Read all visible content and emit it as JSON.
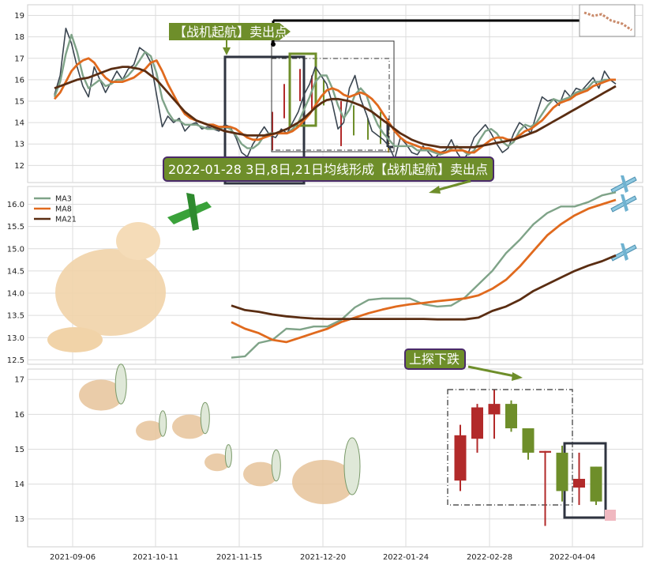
{
  "chart_data": {
    "type": "line",
    "x_ticks": [
      "2021-09-06",
      "2021-10-11",
      "2021-11-15",
      "2021-12-20",
      "2022-01-24",
      "2022-02-28",
      "2022-04-04"
    ],
    "panels": [
      {
        "id": "top",
        "ylim": [
          11.2,
          19.5
        ],
        "yticks": [
          "12",
          "13",
          "14",
          "15",
          "16",
          "17",
          "18",
          "19"
        ],
        "series": [
          {
            "name": "price",
            "color": "#3a4550",
            "values": [
              15.3,
              16.2,
              18.4,
              17.7,
              16.6,
              15.7,
              15.2,
              16.6,
              16.0,
              15.4,
              15.9,
              16.4,
              16.0,
              16.5,
              16.7,
              17.5,
              17.3,
              16.8,
              15.3,
              13.8,
              14.3,
              14.0,
              14.2,
              13.6,
              13.9,
              14.0,
              13.7,
              13.8,
              13.7,
              13.6,
              13.9,
              13.8,
              13.3,
              12.6,
              12.4,
              13.0,
              13.4,
              13.8,
              13.4,
              13.3,
              13.7,
              13.5,
              14.0,
              14.5,
              15.3,
              15.8,
              16.6,
              16.2,
              15.8,
              14.9,
              13.7,
              14.0,
              15.6,
              16.2,
              15.1,
              14.4,
              13.6,
              13.4,
              13.2,
              12.9,
              12.3,
              13.3,
              13.0,
              12.6,
              12.5,
              12.9,
              12.6,
              12.3,
              12.6,
              12.7,
              13.2,
              12.6,
              12.2,
              12.6,
              13.3,
              13.6,
              13.9,
              13.5,
              13.0,
              12.6,
              12.8,
              13.5,
              14.0,
              13.8,
              13.5,
              14.4,
              15.2,
              15.0,
              15.1,
              14.8,
              15.5,
              15.2,
              15.6,
              15.5,
              15.8,
              16.1,
              15.6,
              16.4,
              16.0,
              15.8
            ]
          },
          {
            "name": "MA3",
            "color": "#7fa388",
            "values": [
              15.2,
              15.9,
              17.2,
              18.1,
              17.3,
              16.2,
              15.6,
              15.8,
              16.0,
              15.7,
              15.8,
              16.0,
              16.0,
              16.2,
              16.5,
              16.9,
              17.3,
              17.1,
              16.3,
              15.1,
              14.5,
              14.1,
              14.1,
              13.9,
              13.9,
              13.9,
              13.8,
              13.7,
              13.7,
              13.7,
              13.8,
              13.7,
              13.4,
              13.0,
              12.8,
              12.8,
              13.0,
              13.4,
              13.5,
              13.5,
              13.5,
              13.5,
              13.7,
              14.0,
              14.6,
              15.2,
              15.9,
              16.2,
              16.2,
              15.6,
              14.8,
              14.2,
              14.6,
              15.3,
              15.6,
              15.3,
              14.5,
              13.9,
              13.5,
              13.2,
              12.9,
              12.9,
              12.9,
              12.9,
              12.7,
              12.7,
              12.7,
              12.6,
              12.5,
              12.6,
              12.8,
              12.9,
              12.7,
              12.5,
              12.7,
              13.2,
              13.6,
              13.7,
              13.5,
              13.1,
              12.9,
              13.1,
              13.6,
              13.9,
              13.8,
              14.0,
              14.4,
              14.8,
              15.1,
              15.0,
              15.1,
              15.2,
              15.4,
              15.5,
              15.6,
              15.9,
              15.9,
              16.0,
              16.0,
              16.0
            ]
          },
          {
            "name": "MA8",
            "color": "#e06a1e",
            "values": [
              15.1,
              15.4,
              15.9,
              16.4,
              16.7,
              16.9,
              17.0,
              16.8,
              16.4,
              16.1,
              15.9,
              15.9,
              15.9,
              16.0,
              16.1,
              16.3,
              16.5,
              16.8,
              16.9,
              16.4,
              15.8,
              15.3,
              14.8,
              14.4,
              14.2,
              14.1,
              14.0,
              13.9,
              13.9,
              13.8,
              13.8,
              13.8,
              13.7,
              13.5,
              13.3,
              13.2,
              13.2,
              13.3,
              13.4,
              13.5,
              13.5,
              13.5,
              13.6,
              13.8,
              14.1,
              14.4,
              14.8,
              15.2,
              15.5,
              15.6,
              15.5,
              15.3,
              15.2,
              15.3,
              15.4,
              15.3,
              15.1,
              14.8,
              14.4,
              14.0,
              13.6,
              13.3,
              13.1,
              13.0,
              12.9,
              12.8,
              12.8,
              12.7,
              12.6,
              12.6,
              12.7,
              12.7,
              12.7,
              12.6,
              12.6,
              12.8,
              13.0,
              13.2,
              13.3,
              13.3,
              13.2,
              13.2,
              13.4,
              13.6,
              13.7,
              13.9,
              14.1,
              14.4,
              14.7,
              14.9,
              15.0,
              15.1,
              15.3,
              15.4,
              15.5,
              15.7,
              15.8,
              15.9,
              16.0,
              16.0
            ]
          },
          {
            "name": "MA21",
            "color": "#5a2d12",
            "values": [
              15.6,
              15.7,
              15.8,
              15.9,
              16.0,
              16.05,
              16.1,
              16.2,
              16.3,
              16.4,
              16.5,
              16.55,
              16.6,
              16.6,
              16.55,
              16.5,
              16.4,
              16.2,
              16.0,
              15.7,
              15.4,
              15.1,
              14.8,
              14.5,
              14.3,
              14.1,
              14.0,
              13.9,
              13.8,
              13.7,
              13.6,
              13.55,
              13.5,
              13.45,
              13.4,
              13.4,
              13.4,
              13.4,
              13.45,
              13.5,
              13.6,
              13.7,
              13.85,
              14.0,
              14.2,
              14.45,
              14.7,
              14.9,
              15.05,
              15.1,
              15.1,
              15.05,
              15.0,
              14.9,
              14.8,
              14.65,
              14.5,
              14.3,
              14.1,
              13.9,
              13.7,
              13.5,
              13.35,
              13.2,
              13.1,
              13.0,
              12.95,
              12.9,
              12.85,
              12.85,
              12.85,
              12.85,
              12.85,
              12.85,
              12.85,
              12.9,
              12.95,
              13.0,
              13.05,
              13.1,
              13.15,
              13.2,
              13.3,
              13.4,
              13.5,
              13.6,
              13.75,
              13.9,
              14.05,
              14.2,
              14.35,
              14.5,
              14.65,
              14.8,
              14.95,
              15.1,
              15.25,
              15.4,
              15.55,
              15.7
            ]
          }
        ],
        "annotations": {
          "sell_label": "【战机起航】卖出点",
          "signal_label": "2022-01-28 3日,8日,21日均线形成【战机起航】卖出点"
        }
      },
      {
        "id": "middle",
        "ylim": [
          12.4,
          16.4
        ],
        "yticks": [
          "12.5",
          "13.0",
          "13.5",
          "14.0",
          "14.5",
          "15.0",
          "15.5",
          "16.0"
        ],
        "legend": [
          "MA3",
          "MA8",
          "MA21"
        ],
        "series": [
          {
            "name": "MA3",
            "color": "#7fa388",
            "values": [
              12.55,
              12.58,
              12.88,
              12.95,
              13.2,
              13.18,
              13.25,
              13.25,
              13.4,
              13.68,
              13.85,
              13.88,
              13.88,
              13.88,
              13.75,
              13.7,
              13.72,
              13.9,
              14.2,
              14.5,
              14.9,
              15.2,
              15.55,
              15.8,
              15.95,
              15.95,
              16.05,
              16.2,
              16.27
            ]
          },
          {
            "name": "MA8",
            "color": "#e06a1e",
            "values": [
              13.35,
              13.2,
              13.1,
              12.95,
              12.9,
              13.0,
              13.1,
              13.2,
              13.35,
              13.45,
              13.55,
              13.63,
              13.7,
              13.75,
              13.78,
              13.82,
              13.85,
              13.88,
              13.95,
              14.1,
              14.3,
              14.6,
              14.95,
              15.3,
              15.55,
              15.75,
              15.9,
              16.0,
              16.1
            ]
          },
          {
            "name": "MA21",
            "color": "#5a2d12",
            "values": [
              13.72,
              13.62,
              13.58,
              13.52,
              13.48,
              13.45,
              13.43,
              13.42,
              13.42,
              13.42,
              13.42,
              13.42,
              13.42,
              13.42,
              13.42,
              13.41,
              13.41,
              13.41,
              13.45,
              13.6,
              13.7,
              13.85,
              14.05,
              14.2,
              14.35,
              14.5,
              14.62,
              14.72,
              14.85
            ]
          }
        ]
      },
      {
        "id": "bottom",
        "ylim": [
          12.2,
          17.3
        ],
        "yticks": [
          "13",
          "14",
          "15",
          "16",
          "17"
        ],
        "candles": [
          {
            "open": 14.1,
            "close": 15.4,
            "high": 15.7,
            "low": 13.8,
            "color": "#b22a2a"
          },
          {
            "open": 15.3,
            "close": 16.2,
            "high": 16.3,
            "low": 14.9,
            "color": "#b22a2a"
          },
          {
            "open": 16.0,
            "close": 16.3,
            "high": 16.7,
            "low": 15.3,
            "color": "#b22a2a"
          },
          {
            "open": 16.3,
            "close": 15.6,
            "high": 16.4,
            "low": 15.5,
            "color": "#6e8e2a"
          },
          {
            "open": 15.6,
            "close": 14.9,
            "high": 15.6,
            "low": 14.7,
            "color": "#6e8e2a"
          },
          {
            "open": 14.95,
            "close": 14.9,
            "high": 14.95,
            "low": 12.8,
            "color": "#b22a2a"
          },
          {
            "open": 14.9,
            "close": 13.8,
            "high": 15.1,
            "low": 13.5,
            "color": "#6e8e2a"
          },
          {
            "open": 13.9,
            "close": 14.15,
            "high": 14.9,
            "low": 13.4,
            "color": "#b22a2a"
          },
          {
            "open": 14.5,
            "close": 13.5,
            "high": 14.5,
            "low": 13.4,
            "color": "#6e8e2a"
          }
        ],
        "annotations": {
          "label": "上探下跌"
        }
      }
    ]
  }
}
